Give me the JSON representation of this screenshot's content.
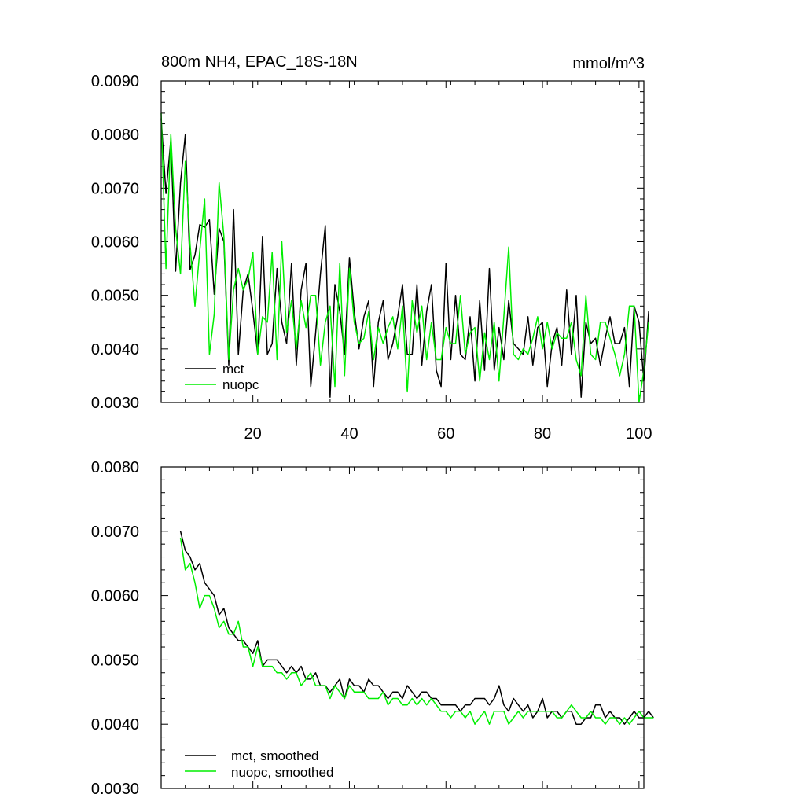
{
  "colors": {
    "mct": "#000000",
    "nuopc": "#00ee00"
  },
  "chart_data": [
    {
      "type": "line",
      "title": "800m NH4, EPAC_18S-18N",
      "units": "mmol/m^3",
      "xlim": [
        1,
        101
      ],
      "ylim": [
        0.003,
        0.009
      ],
      "yticks": [
        0.003,
        0.004,
        0.005,
        0.006,
        0.007,
        0.008,
        0.009
      ],
      "ytick_labels": [
        "0.0030",
        "0.0040",
        "0.0050",
        "0.0060",
        "0.0070",
        "0.0080",
        "0.0090"
      ],
      "xticks": [
        20,
        40,
        60,
        80,
        100
      ],
      "xtick_labels": [
        "20",
        "40",
        "60",
        "80",
        "100"
      ],
      "legend_position": "bottom-left",
      "series": [
        {
          "name": "mct",
          "color": "#000000",
          "x_start": 1,
          "values": [
            0.0083,
            0.0069,
            0.0079,
            0.00545,
            0.0071,
            0.008,
            0.00548,
            0.00575,
            0.00632,
            0.00627,
            0.00641,
            0.00502,
            0.00625,
            0.006,
            0.0037,
            0.0066,
            0.0039,
            0.0051,
            0.0054,
            0.0047,
            0.0039,
            0.0061,
            0.0039,
            0.0041,
            0.0055,
            0.0045,
            0.0041,
            0.0056,
            0.0037,
            0.0051,
            0.0056,
            0.0033,
            0.0043,
            0.0054,
            0.0063,
            0.0031,
            0.0052,
            0.0047,
            0.0039,
            0.0057,
            0.0047,
            0.004,
            0.0046,
            0.0049,
            0.0033,
            0.0045,
            0.0049,
            0.0038,
            0.0041,
            0.0046,
            0.0052,
            0.0039,
            0.0039,
            0.0052,
            0.0037,
            0.0047,
            0.0052,
            0.0036,
            0.0033,
            0.0056,
            0.0038,
            0.005,
            0.0039,
            0.0038,
            0.0046,
            0.0034,
            0.0049,
            0.0036,
            0.0055,
            0.0036,
            0.0044,
            0.0038,
            0.0049,
            0.0041,
            0.004,
            0.0039,
            0.0046,
            0.0037,
            0.0044,
            0.0045,
            0.0033,
            0.0041,
            0.0044,
            0.0037,
            0.0051,
            0.0039,
            0.005,
            0.0031,
            0.0045,
            0.0041,
            0.0042,
            0.0037,
            0.0042,
            0.0046,
            0.0041,
            0.0041,
            0.0044,
            0.0033,
            0.0048,
            0.0045,
            0.0034,
            0.0047
          ]
        },
        {
          "name": "nuopc",
          "color": "#00ee00",
          "x_start": 1,
          "values": [
            0.0084,
            0.0055,
            0.008,
            0.00625,
            0.0054,
            0.0075,
            0.00595,
            0.0048,
            0.00583,
            0.0068,
            0.0039,
            0.00465,
            0.0071,
            0.0061,
            0.0038,
            0.0051,
            0.0055,
            0.0051,
            0.0053,
            0.0058,
            0.0039,
            0.0046,
            0.0045,
            0.0058,
            0.0038,
            0.006,
            0.0043,
            0.0049,
            0.004,
            0.0049,
            0.0044,
            0.005,
            0.005,
            0.0037,
            0.0045,
            0.0048,
            0.0033,
            0.0056,
            0.0035,
            0.0055,
            0.0045,
            0.0041,
            0.0042,
            0.0047,
            0.0038,
            0.0044,
            0.0041,
            0.0044,
            0.0046,
            0.004,
            0.0048,
            0.0032,
            0.0049,
            0.0043,
            0.0048,
            0.0038,
            0.0045,
            0.0038,
            0.0038,
            0.0044,
            0.0041,
            0.0041,
            0.005,
            0.0039,
            0.0043,
            0.0044,
            0.0034,
            0.0043,
            0.0038,
            0.0045,
            0.0034,
            0.0046,
            0.0059,
            0.0039,
            0.0038,
            0.004,
            0.0039,
            0.0042,
            0.0046,
            0.004,
            0.0045,
            0.004,
            0.0043,
            0.0042,
            0.0042,
            0.0045,
            0.0038,
            0.0035,
            0.005,
            0.0039,
            0.0038,
            0.0045,
            0.0045,
            0.0042,
            0.0039,
            0.0035,
            0.0039,
            0.0048,
            0.0048,
            0.003,
            0.0036,
            0.0045
          ]
        }
      ]
    },
    {
      "type": "line",
      "xlim": [
        1,
        101
      ],
      "ylim": [
        0.003,
        0.008
      ],
      "yticks": [
        0.003,
        0.004,
        0.005,
        0.006,
        0.007,
        0.008
      ],
      "ytick_labels": [
        "0.0030",
        "0.0040",
        "0.0050",
        "0.0060",
        "0.0070",
        "0.0080"
      ],
      "xticks": [
        20,
        40,
        60,
        80,
        100
      ],
      "legend_position": "bottom-left",
      "series": [
        {
          "name": "mct, smoothed",
          "color": "#000000",
          "x_start": 5,
          "values": [
            0.007,
            0.0067,
            0.0066,
            0.0064,
            0.0065,
            0.0062,
            0.0061,
            0.006,
            0.0057,
            0.0058,
            0.0055,
            0.0054,
            0.0053,
            0.0053,
            0.0052,
            0.0051,
            0.0053,
            0.0049,
            0.005,
            0.005,
            0.005,
            0.0049,
            0.0048,
            0.0049,
            0.0048,
            0.0049,
            0.0047,
            0.0047,
            0.0048,
            0.0046,
            0.0046,
            0.0045,
            0.0046,
            0.0047,
            0.0044,
            0.0047,
            0.0046,
            0.0046,
            0.0045,
            0.0047,
            0.0046,
            0.0046,
            0.0045,
            0.0044,
            0.0045,
            0.0045,
            0.0044,
            0.0046,
            0.0045,
            0.0044,
            0.0045,
            0.0045,
            0.0044,
            0.0044,
            0.0043,
            0.0043,
            0.0043,
            0.0043,
            0.0042,
            0.0043,
            0.0043,
            0.0044,
            0.0044,
            0.0044,
            0.0043,
            0.0044,
            0.0046,
            0.0043,
            0.0042,
            0.0044,
            0.0043,
            0.0042,
            0.0043,
            0.0041,
            0.0042,
            0.0044,
            0.0041,
            0.0042,
            0.0042,
            0.0041,
            0.0042,
            0.0042,
            0.004,
            0.004,
            0.0041,
            0.0041,
            0.0043,
            0.0043,
            0.0041,
            0.0042,
            0.0041,
            0.0041,
            0.004,
            0.0041,
            0.0042,
            0.0041,
            0.0041,
            0.0042,
            0.0041
          ]
        },
        {
          "name": "nuopc, smoothed",
          "color": "#00ee00",
          "x_start": 5,
          "values": [
            0.0069,
            0.0064,
            0.0065,
            0.0062,
            0.0058,
            0.006,
            0.006,
            0.0058,
            0.0055,
            0.0056,
            0.0054,
            0.0054,
            0.0056,
            0.0052,
            0.0052,
            0.0049,
            0.0052,
            0.0049,
            0.0049,
            0.0049,
            0.0048,
            0.0048,
            0.0047,
            0.0048,
            0.0048,
            0.0046,
            0.0047,
            0.0048,
            0.0046,
            0.0046,
            0.0046,
            0.0044,
            0.0046,
            0.0045,
            0.0044,
            0.0046,
            0.0045,
            0.0045,
            0.0045,
            0.0044,
            0.0044,
            0.0044,
            0.0045,
            0.0043,
            0.0044,
            0.0044,
            0.0043,
            0.0043,
            0.0044,
            0.0043,
            0.0044,
            0.0043,
            0.0044,
            0.0043,
            0.0042,
            0.0042,
            0.0041,
            0.0042,
            0.0042,
            0.0041,
            0.0042,
            0.004,
            0.0041,
            0.0042,
            0.004,
            0.0042,
            0.0042,
            0.0042,
            0.004,
            0.0041,
            0.0042,
            0.0041,
            0.0042,
            0.0042,
            0.0042,
            0.0042,
            0.0042,
            0.0042,
            0.0041,
            0.0041,
            0.0042,
            0.0043,
            0.0042,
            0.0041,
            0.0041,
            0.0042,
            0.0041,
            0.0041,
            0.004,
            0.0041,
            0.0041,
            0.004,
            0.0041,
            0.004,
            0.0041,
            0.0042,
            0.0041,
            0.0041,
            0.0041
          ]
        }
      ]
    }
  ]
}
